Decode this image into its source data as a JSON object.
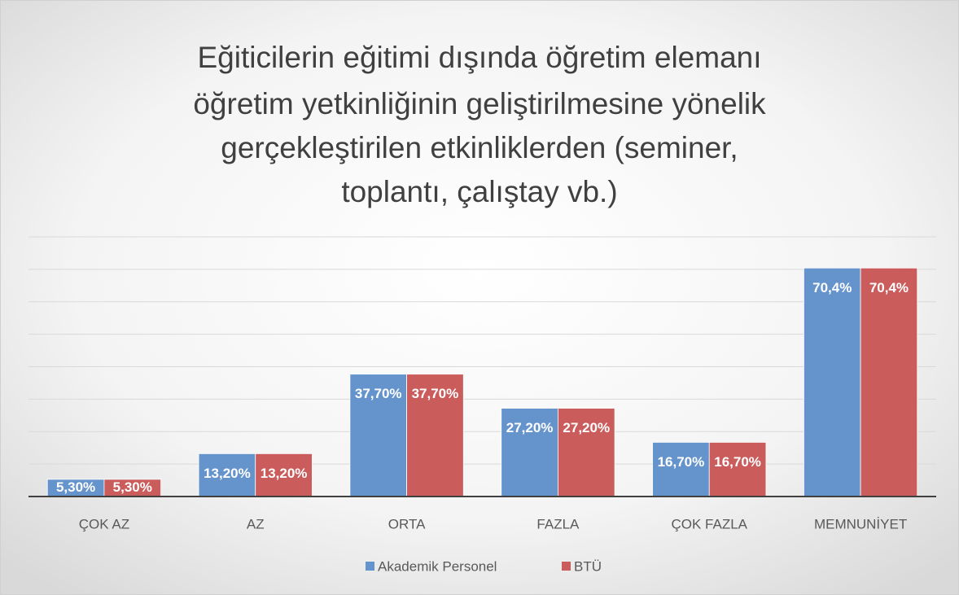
{
  "chart_data": {
    "type": "bar",
    "title": [
      "Eğiticilerin eğitimi dışında öğretim elemanı",
      "öğretim yetkinliğinin geliştirilmesine yönelik",
      "gerçekleştirilen etkinliklerden  (seminer,",
      "toplantı, çalıştay vb.)"
    ],
    "categories": [
      "ÇOK AZ",
      "AZ",
      "ORTA",
      "FAZLA",
      "ÇOK FAZLA",
      "MEMNUNİYET"
    ],
    "series": [
      {
        "name": "Akademik Personel",
        "color": "#6594cc",
        "values": [
          5.3,
          13.2,
          37.7,
          27.2,
          16.7,
          70.4
        ],
        "value_labels": [
          "5,30%",
          "13,20%",
          "37,70%",
          "27,20%",
          "16,70%",
          "70,4%"
        ]
      },
      {
        "name": "BTÜ",
        "color": "#cb5c5c",
        "values": [
          5.3,
          13.2,
          37.7,
          27.2,
          16.7,
          70.4
        ],
        "value_labels": [
          "5,30%",
          "13,20%",
          "37,70%",
          "27,20%",
          "16,70%",
          "70,4%"
        ]
      }
    ],
    "ylim": [
      0,
      80
    ],
    "yticks": [
      0,
      10,
      20,
      30,
      40,
      50,
      60,
      70,
      80
    ],
    "grid": true,
    "legend": "bottom"
  }
}
